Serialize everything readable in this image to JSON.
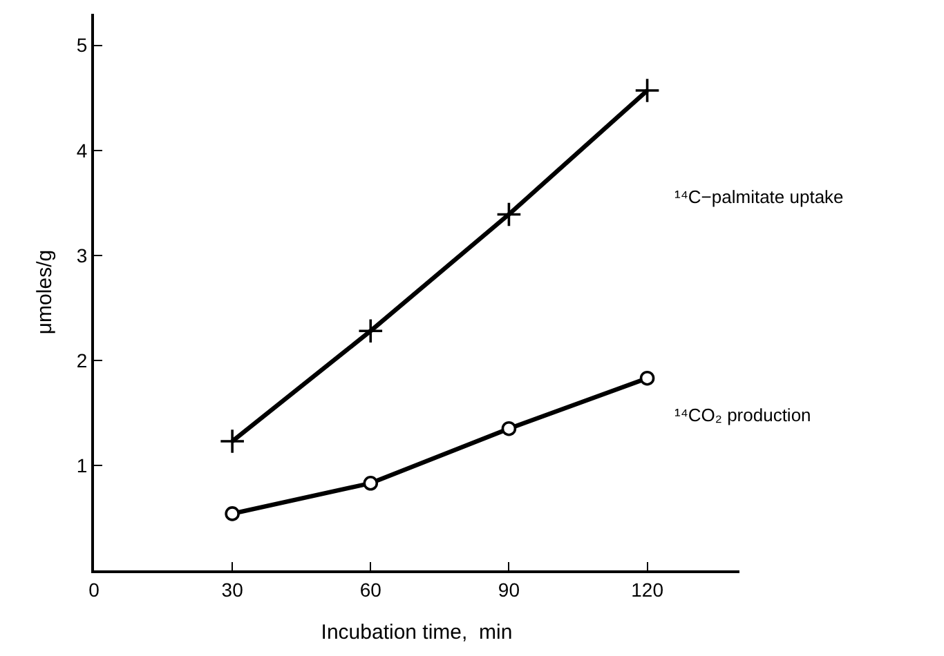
{
  "chart_data": {
    "type": "line",
    "xlabel": "Incubation time,  min",
    "ylabel": "μmoles/g",
    "x": [
      30,
      60,
      90,
      120
    ],
    "series": [
      {
        "color": "#000000",
        "marker": "cross",
        "values": [
          1.23,
          2.28,
          3.39,
          4.57
        ]
      },
      {
        "color": "#000000",
        "marker": "circle",
        "values": [
          0.54,
          0.83,
          1.35,
          1.83
        ]
      }
    ],
    "annotations": [
      "¹⁴C−palmitate uptake",
      "¹⁴CO₂ production"
    ],
    "xlim": [
      0,
      140
    ],
    "ylim": [
      0,
      5.3
    ],
    "xticks": [
      0,
      30,
      60,
      90,
      120
    ],
    "yticks": [
      1,
      2,
      3,
      4,
      5
    ],
    "line_style": "solid"
  }
}
